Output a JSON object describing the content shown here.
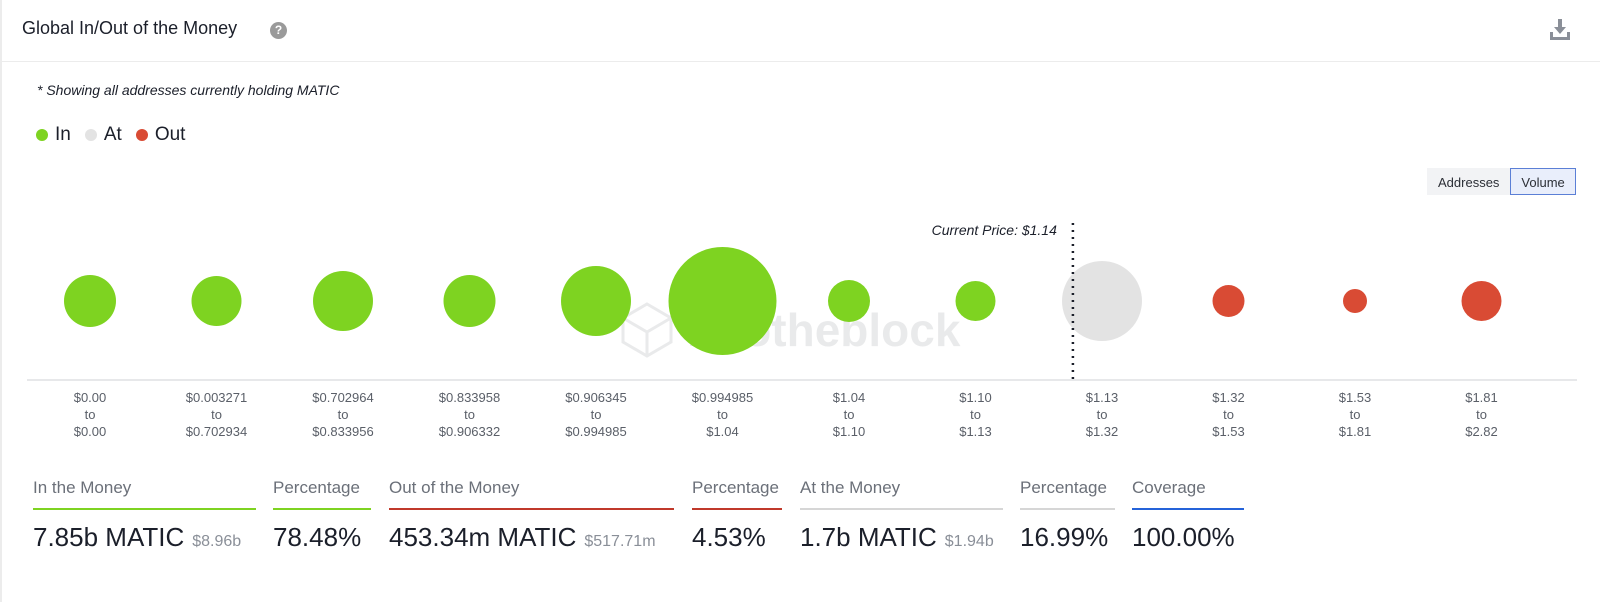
{
  "header": {
    "title": "Global In/Out of the Money",
    "help_icon": "question-circle-icon",
    "download_icon": "download-icon"
  },
  "note": "* Showing all addresses currently holding MATIC",
  "legend": [
    {
      "label": "In",
      "color": "#7ed321"
    },
    {
      "label": "At",
      "color": "#e3e3e3"
    },
    {
      "label": "Out",
      "color": "#d94b34"
    }
  ],
  "toggle": {
    "addresses_label": "Addresses",
    "volume_label": "Volume",
    "active": "Volume"
  },
  "watermark": "intotheblock",
  "chart_data": {
    "type": "bubble",
    "current_price_label": "Current Price: $1.14",
    "current_price_after_index": 7,
    "categories": [
      {
        "from": "$0.00",
        "to": "$0.00",
        "status": "in",
        "size": 26
      },
      {
        "from": "$0.003271",
        "to": "$0.702934",
        "status": "in",
        "size": 25
      },
      {
        "from": "$0.702964",
        "to": "$0.833956",
        "status": "in",
        "size": 30
      },
      {
        "from": "$0.833958",
        "to": "$0.906332",
        "status": "in",
        "size": 26
      },
      {
        "from": "$0.906345",
        "to": "$0.994985",
        "status": "in",
        "size": 35
      },
      {
        "from": "$0.994985",
        "to": "$1.04",
        "status": "in",
        "size": 54
      },
      {
        "from": "$1.04",
        "to": "$1.10",
        "status": "in",
        "size": 21
      },
      {
        "from": "$1.10",
        "to": "$1.13",
        "status": "in",
        "size": 20
      },
      {
        "from": "$1.13",
        "to": "$1.32",
        "status": "at",
        "size": 40
      },
      {
        "from": "$1.32",
        "to": "$1.53",
        "status": "out",
        "size": 16
      },
      {
        "from": "$1.53",
        "to": "$1.81",
        "status": "out",
        "size": 12
      },
      {
        "from": "$1.81",
        "to": "$2.82",
        "status": "out",
        "size": 20
      }
    ],
    "tick_connector": "to",
    "colors": {
      "in": "#7ed321",
      "at": "#e3e3e3",
      "out": "#d94b34"
    }
  },
  "stats": [
    {
      "label": "In the Money",
      "value": "7.85b MATIC",
      "sub": "$8.96b",
      "bar_color": "#7ed321"
    },
    {
      "label": "Percentage",
      "value": "78.48%",
      "sub": "",
      "bar_color": "#7ed321"
    },
    {
      "label": "Out of the Money",
      "value": "453.34m MATIC",
      "sub": "$517.71m",
      "bar_color": "#c0392b"
    },
    {
      "label": "Percentage",
      "value": "4.53%",
      "sub": "",
      "bar_color": "#c0392b"
    },
    {
      "label": "At the Money",
      "value": "1.7b MATIC",
      "sub": "$1.94b",
      "bar_color": "#d6d6d6"
    },
    {
      "label": "Percentage",
      "value": "16.99%",
      "sub": "",
      "bar_color": "#d6d6d6"
    },
    {
      "label": "Coverage",
      "value": "100.00%",
      "sub": "",
      "bar_color": "#2563d9"
    }
  ]
}
